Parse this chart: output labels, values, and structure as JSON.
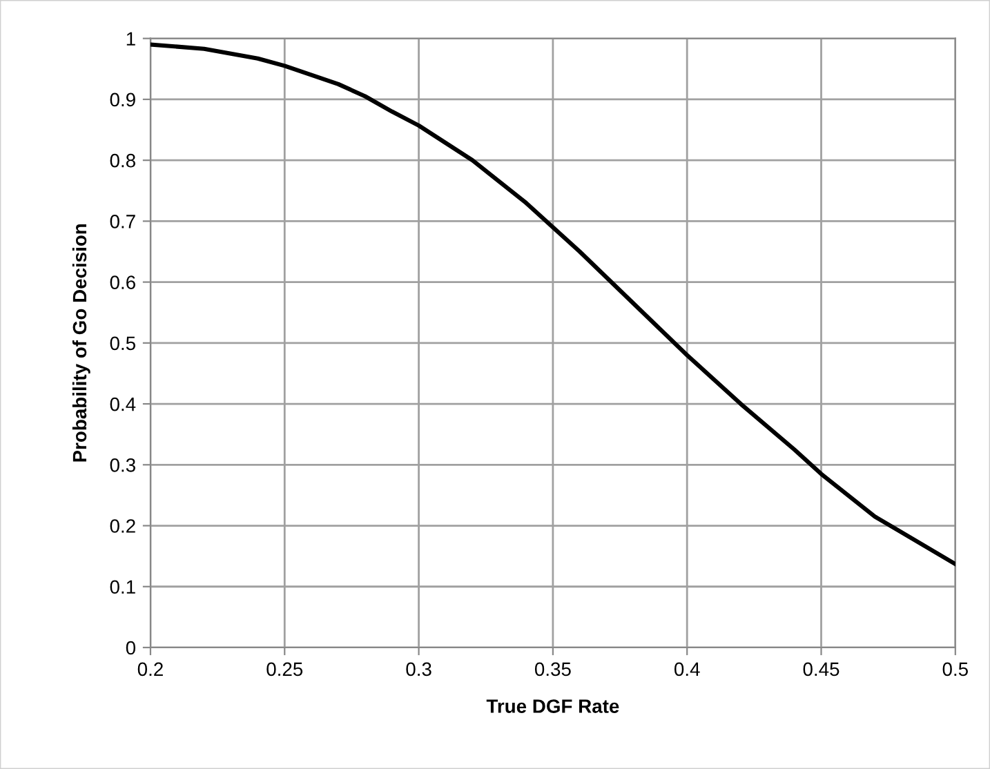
{
  "chart_data": {
    "type": "line",
    "xlabel": "True DGF Rate",
    "ylabel": "Probability of Go Decision",
    "series": [
      {
        "color": "#000000",
        "x": [
          0.2,
          0.22,
          0.24,
          0.25,
          0.26,
          0.27,
          0.28,
          0.29,
          0.3,
          0.32,
          0.34,
          0.35,
          0.36,
          0.38,
          0.4,
          0.42,
          0.44,
          0.45,
          0.47,
          0.5
        ],
        "values": [
          0.99,
          0.983,
          0.967,
          0.955,
          0.94,
          0.925,
          0.905,
          0.88,
          0.857,
          0.8,
          0.73,
          0.69,
          0.65,
          0.565,
          0.48,
          0.4,
          0.325,
          0.285,
          0.215,
          0.137
        ]
      }
    ],
    "xlim": [
      0.2,
      0.5
    ],
    "xticks": [
      {
        "value": 0.2,
        "label": "0.2"
      },
      {
        "value": 0.25,
        "label": "0.25"
      },
      {
        "value": 0.3,
        "label": "0.3"
      },
      {
        "value": 0.35,
        "label": "0.35"
      },
      {
        "value": 0.4,
        "label": "0.4"
      },
      {
        "value": 0.45,
        "label": "0.45"
      },
      {
        "value": 0.5,
        "label": "0.5"
      }
    ],
    "ylim": [
      0,
      1
    ],
    "yticks": [
      0,
      {
        "value": 0.1,
        "label": "0.1"
      },
      {
        "value": 0.2,
        "label": "0.2"
      },
      {
        "value": 0.3,
        "label": "0.3"
      },
      {
        "value": 0.4,
        "label": "0.4"
      },
      {
        "value": 0.5,
        "label": "0.5"
      },
      {
        "value": 0.6,
        "label": "0.6"
      },
      {
        "value": 0.7,
        "label": "0.7"
      },
      {
        "value": 0.8,
        "label": "0.8"
      },
      {
        "value": 0.9,
        "label": "0.9"
      },
      1
    ],
    "grid": true,
    "legend": false,
    "marker": "none",
    "line_style": "solid"
  }
}
